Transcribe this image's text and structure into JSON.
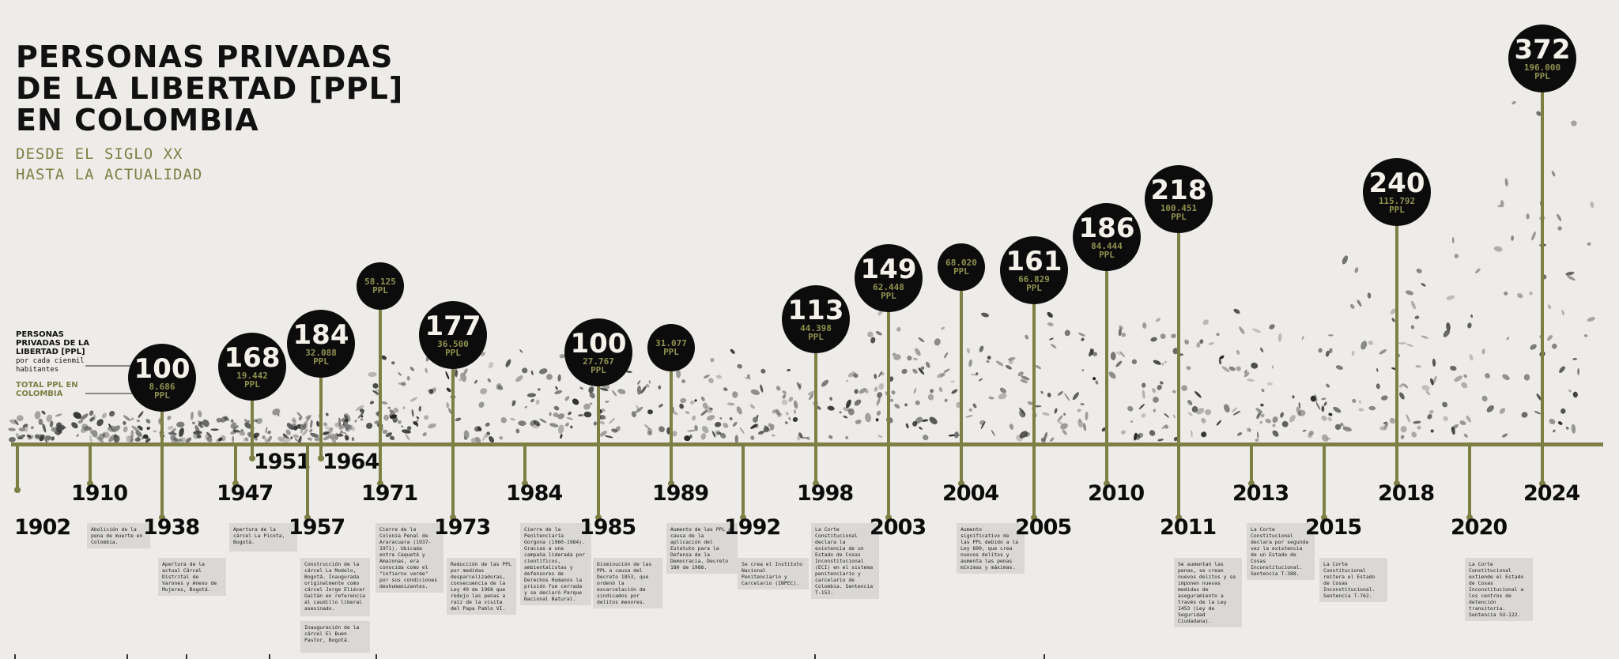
{
  "title": [
    "PERSONAS PRIVADAS",
    "DE LA LIBERTAD [PPL]",
    "EN COLOMBIA"
  ],
  "subtitle": [
    "DESDE EL SIGLO XX",
    "HASTA LA ACTUALIDAD"
  ],
  "legend": {
    "rate_label": "PERSONAS PRIVADAS DE LA LIBERTAD [PPL]",
    "rate_sub": "por cada cienmil habitantes",
    "total_label": "TOTAL PPL EN COLOMBIA"
  },
  "colors": {
    "accent": "#7e7f45",
    "bubble": "#0c0c0c",
    "background": "#eeece9",
    "note": "#d9d8d5"
  },
  "events": [
    {
      "year": "1902",
      "rate": "",
      "total": "",
      "note": ""
    },
    {
      "year": "1910",
      "rate": "",
      "total": "",
      "note": "Abolición de la pena de muerte en Colombia."
    },
    {
      "year": "1938",
      "rate": "100",
      "total": "8.686",
      "note": "Apertura de la actual Cárcel Distrital de Varones y Anexo de Mujeres, Bogotá."
    },
    {
      "year": "1947",
      "rate": "",
      "total": "",
      "note": "Apertura de la cárcel La Picota, Bogotá."
    },
    {
      "year": "1951",
      "rate": "168",
      "total": "19.442",
      "note": ""
    },
    {
      "year": "1957",
      "rate": "",
      "total": "",
      "note": "Construcción de la cárcel La Modelo, Bogotá. Inaugurada originalmente como cárcel Jorge Eliécer Gaitán en referencia al caudillo liberal asesinado.",
      "note2": "Inauguración de la cárcel El Buen Pastor, Bogotá."
    },
    {
      "year": "1964",
      "rate": "184",
      "total": "32.088",
      "note": ""
    },
    {
      "year": "1971",
      "rate": "",
      "total": "58.125",
      "note": "Cierre de la Colonia Penal de Araracuara (1937-1971). Ubicada entre Caquetá y Amazonas, era conocida como el \"infierno verde\" por sus condiciones deshumanizantes."
    },
    {
      "year": "1973",
      "rate": "177",
      "total": "36.500",
      "note": "Reducción de las PPL por medidas desparcelizadoras, consecuencia de la Ley 40 de 1968 que redujo las penas a raíz de la visita del Papa Pablo VI."
    },
    {
      "year": "1984",
      "rate": "",
      "total": "",
      "note": "Cierre de la Penitenciaría Gorgona (1960-1984). Gracias a una campaña liderada por científicos, ambientalistas y defensores de Derechos Humanos la prisión fue cerrada y se declaró Parque Nacional Natural."
    },
    {
      "year": "1985",
      "rate": "100",
      "total": "27.767",
      "note": "Disminución de las PPL a causa del Decreto 1853, que ordenó la excarcelación de sindicados por delitos menores."
    },
    {
      "year": "1989",
      "rate": "",
      "total": "31.077",
      "note": "Aumento de las PPL a causa de la aplicación del Estatuto para la Defensa de la Democracia, Decreto 180 de 1988."
    },
    {
      "year": "1992",
      "rate": "",
      "total": "",
      "note": "Se crea el Instituto Nacional Penitenciario y Carcelario (INPEC)."
    },
    {
      "year": "1998",
      "rate": "113",
      "total": "44.398",
      "note": "La Corte Constitucional declara la existencia de un Estado de Cosas Inconstitucional (ECI) en el sistema penitenciario y carcelario de Colombia. Sentencia T-153."
    },
    {
      "year": "2003",
      "rate": "149",
      "total": "62.448",
      "note": ""
    },
    {
      "year": "2004",
      "rate": "",
      "total": "68.020",
      "note": "Aumento significativo de las PPL debido a la Ley 890, que crea nuevos delitos y aumenta las penas mínimas y máximas."
    },
    {
      "year": "2005",
      "rate": "161",
      "total": "66.829",
      "note": ""
    },
    {
      "year": "2010",
      "rate": "186",
      "total": "84.444",
      "note": ""
    },
    {
      "year": "2011",
      "rate": "218",
      "total": "100.451",
      "note": "Se aumentan las penas, se crean nuevos delitos y se imponen nuevas medidas de aseguramiento a través de la Ley 1453 (Ley de Seguridad Ciudadana)."
    },
    {
      "year": "2013",
      "rate": "",
      "total": "",
      "note": "La Corte Constitucional declara por segunda vez la existencia de un Estado de Cosas Inconstitucional. Sentencia T-388."
    },
    {
      "year": "2015",
      "rate": "",
      "total": "",
      "note": "La Corte Constitucional reitera el Estado de Cosas Inconstitucional. Sentencia T-762."
    },
    {
      "year": "2018",
      "rate": "240",
      "total": "115.792",
      "note": ""
    },
    {
      "year": "2020",
      "rate": "",
      "total": "",
      "note": "La Corte Constitucional extiende el Estado de Cosas Inconstitucional a los centros de detención transitoria. Sentencia SU-122."
    },
    {
      "year": "2024",
      "rate": "372",
      "total": "196.000",
      "note": ""
    }
  ],
  "unit": "PPL"
}
